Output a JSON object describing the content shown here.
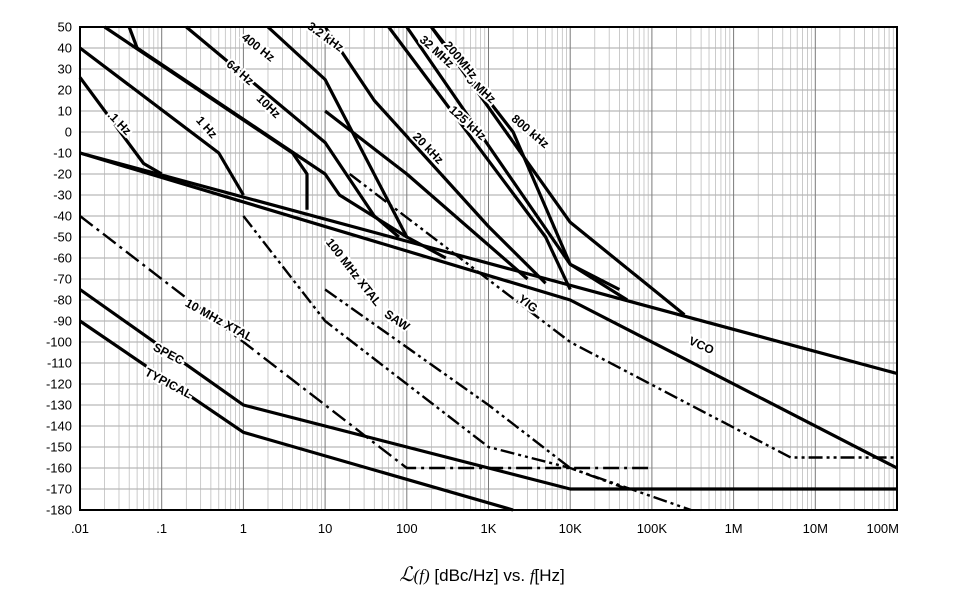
{
  "chart_data": {
    "type": "line",
    "title": "",
    "xscale": "log10",
    "xlim": [
      0.01,
      100000000
    ],
    "ylim": [
      -180,
      50
    ],
    "grid": true,
    "x_ticks": [
      {
        "v": 0.01,
        "label": ".01"
      },
      {
        "v": 0.1,
        "label": ".1"
      },
      {
        "v": 1,
        "label": "1"
      },
      {
        "v": 10,
        "label": "10"
      },
      {
        "v": 100,
        "label": "100"
      },
      {
        "v": 1000,
        "label": "1K"
      },
      {
        "v": 10000,
        "label": "10K"
      },
      {
        "v": 100000,
        "label": "100K"
      },
      {
        "v": 1000000,
        "label": "1M"
      },
      {
        "v": 10000000,
        "label": "10M"
      },
      {
        "v": 100000000,
        "label": "100M"
      }
    ],
    "y_ticks": [
      50,
      40,
      30,
      20,
      10,
      0,
      -10,
      -20,
      -30,
      -40,
      -50,
      -60,
      -70,
      -80,
      -90,
      -100,
      -110,
      -120,
      -130,
      -140,
      -150,
      -160,
      -170,
      -180
    ],
    "xlabel": {
      "symbol": "ℒ",
      "paren": "(f)",
      "units": "[dBc/Hz] vs.",
      "var": "f",
      "units2": "[Hz]"
    },
    "series": [
      {
        "name": "VCO",
        "style": "solid",
        "label": "VCO",
        "label_at": [
          400000,
          -102
        ],
        "label_angle": 24,
        "points": [
          [
            0.01,
            -10
          ],
          [
            10000,
            -80
          ],
          [
            100000000,
            -160
          ]
        ]
      },
      {
        "name": "VCO base",
        "style": "solid",
        "label": "",
        "points": [
          [
            0.01,
            -10
          ],
          [
            100000000,
            -115
          ]
        ]
      },
      {
        "name": "SPEC",
        "style": "solid",
        "label": "SPEC",
        "label_at": [
          0.12,
          -106
        ],
        "label_angle": 28,
        "points": [
          [
            0.01,
            -75
          ],
          [
            1,
            -130
          ],
          [
            10000,
            -170
          ],
          [
            100000000,
            -170
          ]
        ]
      },
      {
        "name": "TYPICAL",
        "style": "solid",
        "label": "TYPICAL",
        "label_at": [
          0.12,
          -120
        ],
        "label_angle": 28,
        "points": [
          [
            0.01,
            -90
          ],
          [
            1,
            -143
          ],
          [
            2000,
            -180
          ]
        ]
      },
      {
        "name": "10 MHz XTAL",
        "style": "dashdot",
        "label": "10 MHz XTAL",
        "label_at": [
          0.5,
          -90
        ],
        "label_angle": 29,
        "points": [
          [
            0.01,
            -40
          ],
          [
            10,
            -130
          ],
          [
            100,
            -160
          ],
          [
            100000,
            -160
          ]
        ]
      },
      {
        "name": "100 MHz XTAL",
        "style": "dashdotdot",
        "label": "100 MHz XTAL",
        "label_at": [
          22,
          -67
        ],
        "label_angle": 52,
        "points": [
          [
            1,
            -40
          ],
          [
            10,
            -90
          ],
          [
            1000,
            -150
          ],
          [
            10000,
            -160
          ],
          [
            300000,
            -180
          ]
        ]
      },
      {
        "name": "SAW",
        "style": "dashdotdot",
        "label": "SAW",
        "label_at": [
          75,
          -90
        ],
        "label_angle": 34,
        "points": [
          [
            10,
            -75
          ],
          [
            1000,
            -130
          ],
          [
            10000,
            -160
          ],
          [
            50000,
            -170
          ],
          [
            100000000,
            -170
          ]
        ]
      },
      {
        "name": "YIG",
        "style": "dashdotdot",
        "label": "YIG",
        "label_at": [
          3000,
          -82
        ],
        "label_angle": 38,
        "points": [
          [
            20,
            -20
          ],
          [
            10000,
            -100
          ],
          [
            5000000,
            -155
          ],
          [
            100000000,
            -155
          ]
        ]
      },
      {
        "name": ".1 Hz",
        "style": "solid",
        "label": ".1 Hz",
        "label_at": [
          0.03,
          4
        ],
        "label_angle": 46,
        "points": [
          [
            0.01,
            26
          ],
          [
            0.06,
            -15
          ],
          [
            0.1,
            -20
          ]
        ]
      },
      {
        "name": "1 Hz",
        "style": "solid",
        "label": "1 Hz",
        "label_at": [
          0.35,
          2
        ],
        "label_angle": 48,
        "points": [
          [
            0.01,
            40
          ],
          [
            0.5,
            -10
          ],
          [
            1,
            -30
          ]
        ]
      },
      {
        "name": "10Hz",
        "style": "solid",
        "label": "10Hz",
        "label_at": [
          2,
          12
        ],
        "label_angle": 44,
        "points": [
          [
            0.02,
            50
          ],
          [
            4,
            -10
          ],
          [
            6,
            -20
          ],
          [
            6,
            -37
          ]
        ]
      },
      {
        "name": "64 Hz",
        "style": "solid",
        "label": "64 Hz",
        "label_at": [
          0.9,
          28
        ],
        "label_angle": 40,
        "points": [
          [
            0.04,
            50
          ],
          [
            0.05,
            40
          ],
          [
            10,
            -20
          ],
          [
            15,
            -30
          ],
          [
            100,
            -50
          ]
        ]
      },
      {
        "name": "400 Hz",
        "style": "solid",
        "label": "400 Hz",
        "label_at": [
          1.5,
          40
        ],
        "label_angle": 38,
        "points": [
          [
            0.2,
            50
          ],
          [
            10,
            -5
          ],
          [
            40,
            -40
          ],
          [
            80,
            -50
          ]
        ]
      },
      {
        "name": "3.2 kHz",
        "style": "solid",
        "label": "3.2 kHz",
        "label_at": [
          10,
          45
        ],
        "label_angle": 36,
        "points": [
          [
            2,
            50
          ],
          [
            10,
            25
          ],
          [
            100,
            -50
          ],
          [
            300,
            -60
          ]
        ]
      },
      {
        "name": "20 kHz",
        "style": "solid",
        "label": "20 kHz",
        "label_at": [
          180,
          -8
        ],
        "label_angle": 46,
        "points": [
          [
            10,
            10
          ],
          [
            100,
            -20
          ],
          [
            3000,
            -70
          ]
        ]
      },
      {
        "name": "125 kHz",
        "style": "solid",
        "label": "125 kHz",
        "label_at": [
          550,
          4
        ],
        "label_angle": 42,
        "points": [
          [
            10,
            50
          ],
          [
            40,
            15
          ],
          [
            1000,
            -45
          ],
          [
            5000,
            -72
          ]
        ]
      },
      {
        "name": "800 kHz",
        "style": "solid",
        "label": "800 kHz",
        "label_at": [
          3200,
          0
        ],
        "label_angle": 40,
        "points": [
          [
            60,
            50
          ],
          [
            5000,
            -50
          ],
          [
            10000,
            -75
          ]
        ]
      },
      {
        "name": "5 MHz",
        "style": "solid",
        "label": "5 MHz",
        "label_at": [
          800,
          20
        ],
        "label_angle": 42,
        "points": [
          [
            200,
            50
          ],
          [
            2000,
            0
          ],
          [
            10000,
            -63
          ],
          [
            50000,
            -80
          ]
        ]
      },
      {
        "name": "32 MHz",
        "style": "solid",
        "label": "32 MHz",
        "label_at": [
          230,
          38
        ],
        "label_angle": 42,
        "points": [
          [
            100,
            50
          ],
          [
            10000,
            -63
          ],
          [
            40000,
            -75
          ]
        ]
      },
      {
        "name": "200MHz",
        "style": "solid",
        "label": "200MHz",
        "label_at": [
          450,
          34
        ],
        "label_angle": 50,
        "points": [
          [
            200,
            50
          ],
          [
            10000,
            -43
          ],
          [
            250000,
            -87
          ]
        ]
      }
    ]
  },
  "caption": {
    "symbol": "ℒ",
    "paren": "(f)",
    "units": "[dBc/Hz] vs.",
    "var": "f",
    "units2": "[Hz]"
  }
}
